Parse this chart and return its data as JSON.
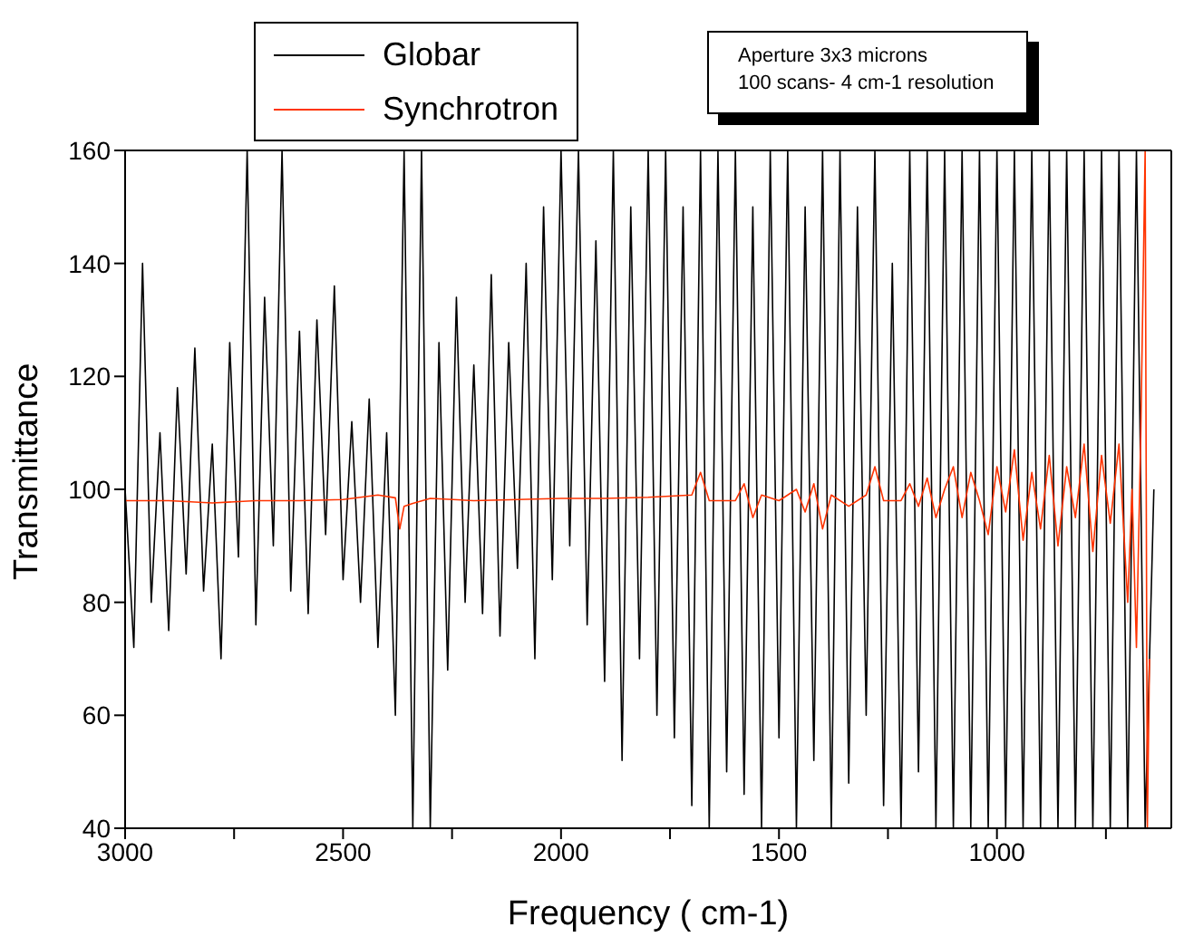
{
  "chart_data": {
    "type": "line",
    "xlabel": "Frequency ( cm-1)",
    "ylabel": "Transmittance",
    "annotations": [
      "Aperture 3x3 microns",
      "100 scans- 4 cm-1 resolution"
    ],
    "xlim": [
      3000,
      600
    ],
    "xticks": [
      3000,
      {
        "value": 2750,
        "label": null
      },
      2500,
      {
        "value": 2250,
        "label": null
      },
      2000,
      {
        "value": 1750,
        "label": null
      },
      1500,
      {
        "value": 1250,
        "label": null
      },
      1000,
      {
        "value": 750,
        "label": null
      }
    ],
    "ylim": [
      40,
      160
    ],
    "yticks": [
      40,
      60,
      80,
      100,
      120,
      140,
      160
    ],
    "legend": "top left",
    "marker": "none",
    "line_style": "solid",
    "series": [
      {
        "name": "Globar",
        "color": "#000000",
        "x": [
          3000,
          2980,
          2960,
          2940,
          2920,
          2900,
          2880,
          2860,
          2840,
          2820,
          2800,
          2780,
          2760,
          2740,
          2720,
          2700,
          2680,
          2660,
          2640,
          2620,
          2600,
          2580,
          2560,
          2540,
          2520,
          2500,
          2480,
          2460,
          2440,
          2420,
          2400,
          2380,
          2360,
          2340,
          2320,
          2300,
          2280,
          2260,
          2240,
          2220,
          2200,
          2180,
          2160,
          2140,
          2120,
          2100,
          2080,
          2060,
          2040,
          2020,
          2000,
          1980,
          1960,
          1940,
          1920,
          1900,
          1880,
          1860,
          1840,
          1820,
          1800,
          1780,
          1760,
          1740,
          1720,
          1700,
          1680,
          1660,
          1640,
          1620,
          1600,
          1580,
          1560,
          1540,
          1520,
          1500,
          1480,
          1460,
          1440,
          1420,
          1400,
          1380,
          1360,
          1340,
          1320,
          1300,
          1280,
          1260,
          1240,
          1220,
          1200,
          1180,
          1160,
          1140,
          1120,
          1100,
          1080,
          1060,
          1040,
          1020,
          1000,
          980,
          960,
          940,
          920,
          900,
          880,
          860,
          840,
          820,
          800,
          780,
          760,
          740,
          720,
          700,
          680,
          660,
          640
        ],
        "values": [
          100,
          72,
          140,
          80,
          110,
          75,
          118,
          85,
          125,
          82,
          108,
          70,
          126,
          88,
          160,
          76,
          134,
          90,
          160,
          82,
          128,
          78,
          130,
          92,
          136,
          84,
          112,
          80,
          116,
          72,
          110,
          60,
          160,
          40,
          160,
          40,
          126,
          68,
          134,
          80,
          122,
          78,
          138,
          74,
          126,
          86,
          140,
          70,
          150,
          84,
          160,
          90,
          160,
          76,
          144,
          66,
          160,
          52,
          150,
          70,
          160,
          60,
          160,
          56,
          150,
          44,
          160,
          40,
          160,
          50,
          160,
          46,
          150,
          40,
          160,
          56,
          160,
          40,
          150,
          52,
          160,
          40,
          160,
          48,
          150,
          60,
          160,
          44,
          140,
          40,
          160,
          50,
          160,
          40,
          160,
          40,
          160,
          40,
          160,
          40,
          160,
          40,
          160,
          40,
          160,
          40,
          160,
          40,
          160,
          40,
          160,
          40,
          160,
          40,
          160,
          40,
          160,
          40,
          100
        ]
      },
      {
        "name": "Synchrotron",
        "color": "#ff3300",
        "x": [
          3000,
          2900,
          2800,
          2700,
          2600,
          2500,
          2420,
          2380,
          2370,
          2360,
          2340,
          2300,
          2200,
          2100,
          2000,
          1900,
          1800,
          1700,
          1680,
          1660,
          1600,
          1580,
          1560,
          1540,
          1500,
          1460,
          1440,
          1420,
          1400,
          1380,
          1340,
          1300,
          1280,
          1260,
          1220,
          1200,
          1180,
          1160,
          1140,
          1120,
          1100,
          1080,
          1060,
          1040,
          1020,
          1000,
          980,
          960,
          940,
          920,
          900,
          880,
          860,
          840,
          820,
          800,
          780,
          760,
          740,
          720,
          700,
          690,
          680,
          670,
          660,
          655,
          650
        ],
        "values": [
          98,
          98,
          97.6,
          98,
          98,
          98.2,
          99,
          98.5,
          93,
          97,
          97.5,
          98.4,
          98,
          98.2,
          98.4,
          98.4,
          98.6,
          99,
          103,
          98,
          98,
          101,
          95,
          99,
          98,
          100,
          96,
          101,
          93,
          99,
          97,
          99,
          104,
          98,
          98,
          101,
          97,
          102,
          95,
          100,
          104,
          95,
          103,
          98,
          92,
          104,
          96,
          107,
          91,
          103,
          93,
          106,
          90,
          104,
          95,
          108,
          89,
          106,
          94,
          108,
          80,
          100,
          72,
          110,
          160,
          40,
          70
        ]
      }
    ]
  }
}
